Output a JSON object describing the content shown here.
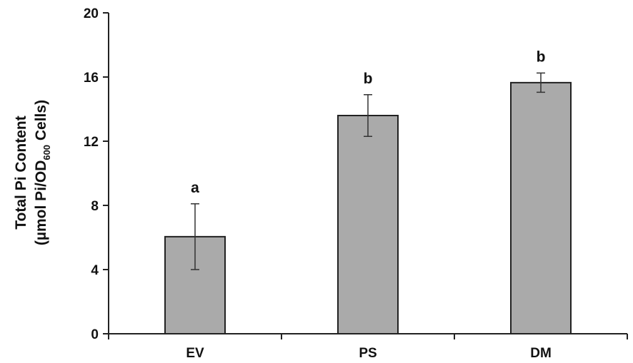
{
  "chart_data": {
    "type": "bar",
    "categories": [
      "EV",
      "PS",
      "DM"
    ],
    "values": [
      6.05,
      13.6,
      15.65
    ],
    "error": [
      2.05,
      1.3,
      0.6
    ],
    "significance": [
      "a",
      "b",
      "b"
    ],
    "ylim": [
      0,
      20
    ],
    "yticks": [
      "0",
      "4",
      "8",
      "12",
      "16",
      "20"
    ],
    "ylabel_line1": "Total Pi Content",
    "ylabel_line2_pre": "(µmol Pi/OD",
    "ylabel_line2_sub": "600",
    "ylabel_line2_post": " Cells)",
    "bar_color": "#aaaaaa",
    "bar_edge_color": "#222222",
    "grid": false
  }
}
